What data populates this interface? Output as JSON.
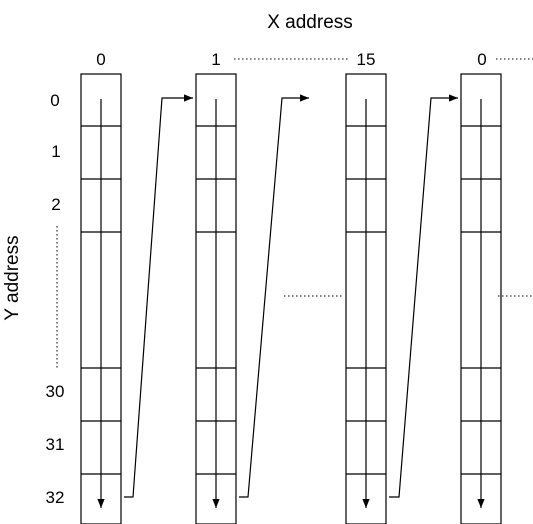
{
  "diagram": {
    "x_axis_title": "X address",
    "y_axis_title": "Y address",
    "x_labels": [
      "0",
      "1",
      "15",
      "0"
    ],
    "y_labels": [
      "0",
      "1",
      "2",
      "30",
      "31",
      "32"
    ],
    "colors": {
      "line": "#000000",
      "background": "#ffffff"
    }
  }
}
